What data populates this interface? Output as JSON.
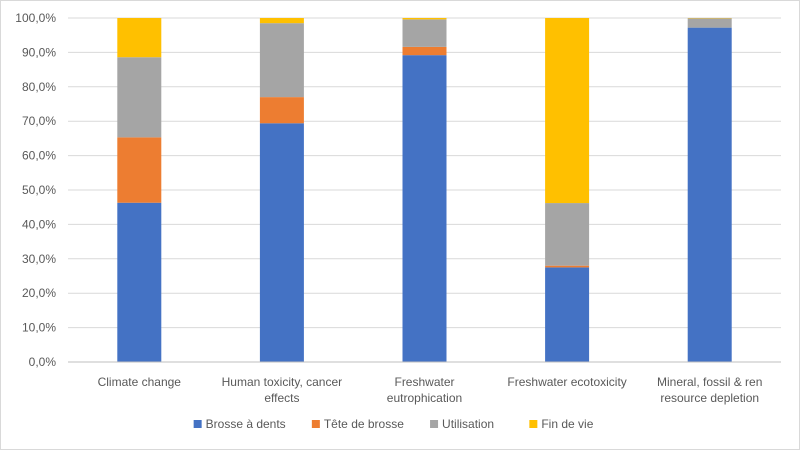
{
  "chart_data": {
    "type": "bar",
    "stacked": true,
    "title": "",
    "xlabel": "",
    "ylabel": "",
    "ylim": [
      0,
      100
    ],
    "y_ticks": [
      "0,0%",
      "10,0%",
      "20,0%",
      "30,0%",
      "40,0%",
      "50,0%",
      "60,0%",
      "70,0%",
      "80,0%",
      "90,0%",
      "100,0%"
    ],
    "categories": [
      [
        "Climate change"
      ],
      [
        "Human toxicity, cancer",
        "effects"
      ],
      [
        "Freshwater",
        "eutrophication"
      ],
      [
        "Freshwater ecotoxicity"
      ],
      [
        "Mineral, fossil & ren",
        "resource depletion"
      ]
    ],
    "series": [
      {
        "name": "Brosse à dents",
        "color": "#4472C4",
        "values": [
          46.3,
          69.4,
          89.2,
          27.5,
          97.2
        ]
      },
      {
        "name": "Tête de brosse",
        "color": "#ED7D31",
        "values": [
          19.0,
          7.6,
          2.4,
          0.5,
          0.0
        ]
      },
      {
        "name": "Utilisation",
        "color": "#A5A5A5",
        "values": [
          23.3,
          21.5,
          8.0,
          18.2,
          2.7
        ]
      },
      {
        "name": "Fin de vie",
        "color": "#FFC000",
        "values": [
          11.4,
          1.5,
          0.4,
          53.8,
          0.1
        ]
      }
    ],
    "grid": true,
    "legend": "bottom"
  }
}
